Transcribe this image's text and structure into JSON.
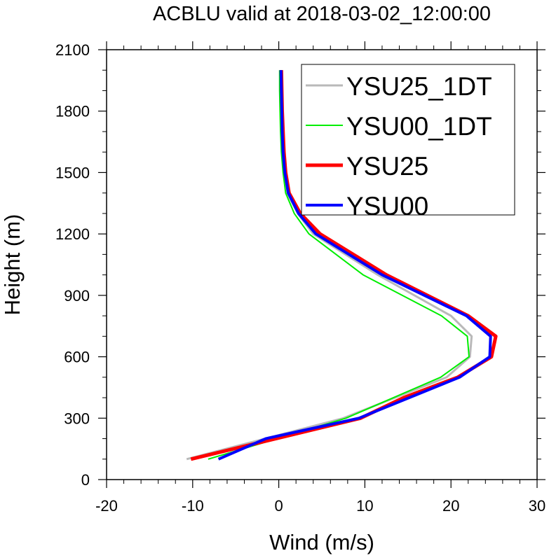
{
  "chart_data": {
    "type": "line",
    "title": "ACBLU valid at 2018-03-02_12:00:00",
    "xlabel": "Wind (m/s)",
    "ylabel": "Height (m)",
    "xlim": [
      -20,
      30
    ],
    "ylim": [
      0,
      2100
    ],
    "xticks": [
      -20,
      -10,
      0,
      10,
      20,
      30
    ],
    "yticks": [
      0,
      300,
      600,
      900,
      1200,
      1500,
      1800,
      2100
    ],
    "legend_position": "top-right",
    "series": [
      {
        "name": "YSU25_1DT",
        "color": "#b9b9b9",
        "width": 3,
        "points": [
          [
            -10.7,
            100
          ],
          [
            7.5,
            300
          ],
          [
            19.5,
            500
          ],
          [
            22.2,
            600
          ],
          [
            22.4,
            700
          ],
          [
            20.0,
            800
          ],
          [
            11.5,
            1000
          ],
          [
            4.0,
            1200
          ],
          [
            2.2,
            1300
          ],
          [
            1.0,
            1400
          ],
          [
            0.6,
            1500
          ],
          [
            0.4,
            1600
          ],
          [
            0.3,
            1700
          ],
          [
            0.25,
            1800
          ],
          [
            0.2,
            1900
          ],
          [
            0.2,
            2000
          ]
        ]
      },
      {
        "name": "YSU00_1DT",
        "color": "#00ee00",
        "width": 2,
        "points": [
          [
            -8.2,
            100
          ],
          [
            7.8,
            300
          ],
          [
            18.8,
            500
          ],
          [
            22.1,
            600
          ],
          [
            21.9,
            700
          ],
          [
            18.9,
            800
          ],
          [
            9.8,
            1000
          ],
          [
            3.5,
            1200
          ],
          [
            1.8,
            1300
          ],
          [
            0.8,
            1400
          ],
          [
            0.5,
            1500
          ],
          [
            0.3,
            1600
          ],
          [
            0.2,
            1700
          ],
          [
            0.15,
            1800
          ],
          [
            0.1,
            1900
          ],
          [
            0.1,
            2000
          ]
        ]
      },
      {
        "name": "YSU25",
        "color": "#ff0000",
        "width": 5,
        "points": [
          [
            -10.2,
            100
          ],
          [
            9.5,
            300
          ],
          [
            14.5,
            400
          ],
          [
            20.8,
            500
          ],
          [
            24.7,
            600
          ],
          [
            25.2,
            700
          ],
          [
            22.0,
            800
          ],
          [
            12.5,
            1000
          ],
          [
            4.8,
            1200
          ],
          [
            2.5,
            1300
          ],
          [
            1.2,
            1400
          ],
          [
            0.8,
            1500
          ],
          [
            0.6,
            1600
          ],
          [
            0.5,
            1700
          ],
          [
            0.4,
            1800
          ],
          [
            0.35,
            1900
          ],
          [
            0.3,
            2000
          ]
        ]
      },
      {
        "name": "YSU00",
        "color": "#0000ff",
        "width": 4,
        "points": [
          [
            -7.0,
            100
          ],
          [
            -1.5,
            200
          ],
          [
            9.3,
            300
          ],
          [
            21.0,
            500
          ],
          [
            24.5,
            600
          ],
          [
            24.6,
            700
          ],
          [
            21.8,
            800
          ],
          [
            12.0,
            1000
          ],
          [
            4.3,
            1200
          ],
          [
            2.3,
            1300
          ],
          [
            1.1,
            1400
          ],
          [
            0.7,
            1500
          ],
          [
            0.5,
            1600
          ],
          [
            0.4,
            1700
          ],
          [
            0.35,
            1800
          ],
          [
            0.3,
            1900
          ],
          [
            0.25,
            2000
          ]
        ]
      }
    ]
  }
}
